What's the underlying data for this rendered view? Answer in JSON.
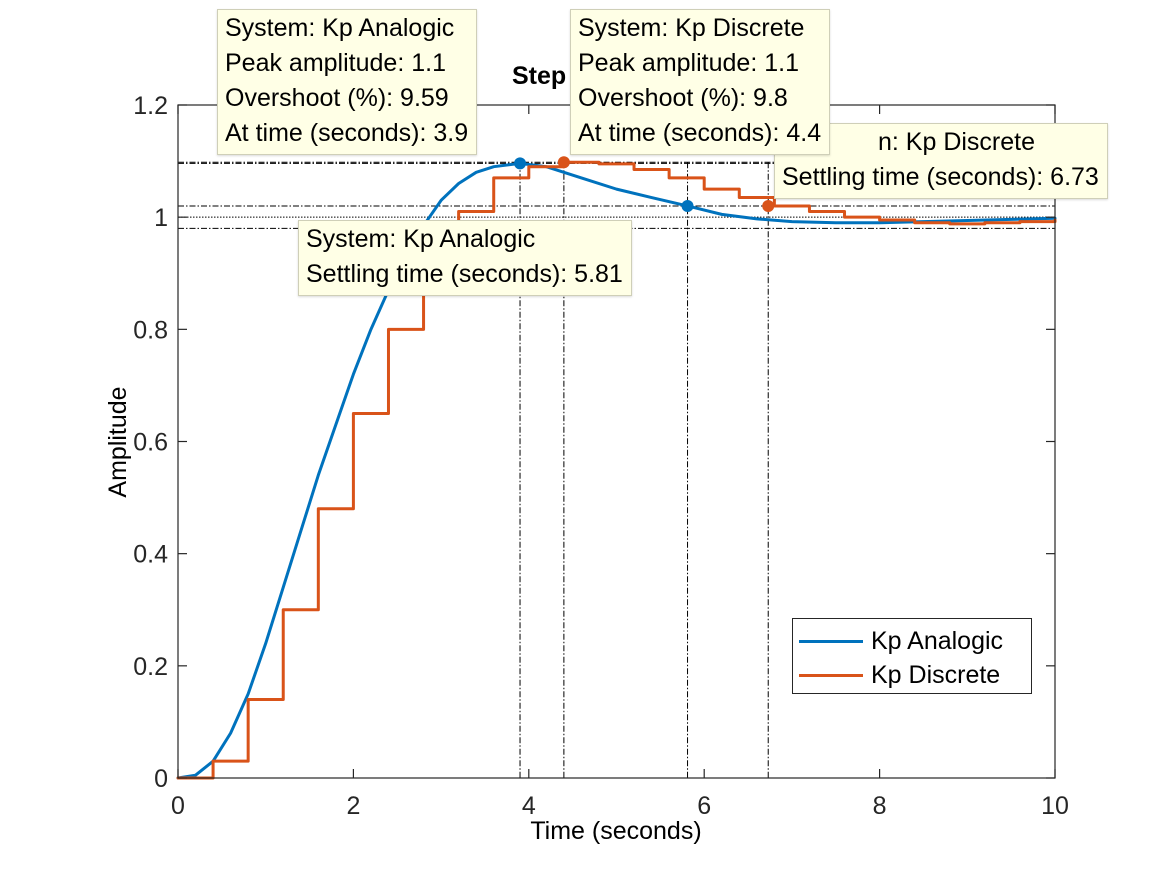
{
  "chart_data": {
    "type": "line",
    "title": "Step",
    "xlabel": "Time (seconds)",
    "ylabel": "Amplitude",
    "xlim": [
      0,
      10
    ],
    "ylim": [
      0,
      1.2
    ],
    "xticks": [
      0,
      2,
      4,
      6,
      8,
      10
    ],
    "xtick_labels": [
      "0",
      "2",
      "4",
      "6",
      "8",
      "10"
    ],
    "yticks": [
      0,
      0.2,
      0.4,
      0.6,
      0.8,
      1,
      1.2
    ],
    "ytick_labels": [
      "0",
      "0.2",
      "0.4",
      "0.6",
      "0.8",
      "1",
      "1.2"
    ],
    "grid": false,
    "legend_position": "bottom-right",
    "series": [
      {
        "name": "Kp Analogic",
        "color": "#0072BD",
        "style": "line",
        "x": [
          0,
          0.2,
          0.4,
          0.6,
          0.8,
          1.0,
          1.2,
          1.4,
          1.6,
          1.8,
          2.0,
          2.2,
          2.4,
          2.6,
          2.8,
          3.0,
          3.2,
          3.4,
          3.6,
          3.9,
          4.2,
          4.6,
          5.0,
          5.4,
          5.81,
          6.2,
          6.6,
          7.0,
          7.5,
          8.0,
          8.5,
          9.0,
          9.5,
          10.0
        ],
        "y": [
          0,
          0.005,
          0.03,
          0.08,
          0.15,
          0.24,
          0.34,
          0.44,
          0.54,
          0.63,
          0.72,
          0.8,
          0.87,
          0.93,
          0.985,
          1.03,
          1.06,
          1.08,
          1.09,
          1.096,
          1.09,
          1.07,
          1.05,
          1.035,
          1.02,
          1.005,
          0.997,
          0.992,
          0.99,
          0.99,
          0.992,
          0.994,
          0.996,
          0.998
        ]
      },
      {
        "name": "Kp Discrete",
        "color": "#D95319",
        "style": "stairs",
        "x": [
          0,
          0.4,
          0.8,
          1.2,
          1.6,
          2.0,
          2.4,
          2.8,
          3.2,
          3.6,
          4.0,
          4.4,
          4.8,
          5.2,
          5.6,
          6.0,
          6.4,
          6.8,
          7.2,
          7.6,
          8.0,
          8.4,
          8.8,
          9.2,
          9.6,
          10.0
        ],
        "y": [
          0,
          0.03,
          0.14,
          0.3,
          0.48,
          0.65,
          0.8,
          0.91,
          1.01,
          1.07,
          1.09,
          1.098,
          1.095,
          1.085,
          1.07,
          1.05,
          1.035,
          1.02,
          1.01,
          1.0,
          0.995,
          0.99,
          0.988,
          0.99,
          0.992,
          0.995
        ]
      }
    ],
    "markers": [
      {
        "series": "Kp Analogic",
        "x": 3.9,
        "y": 1.096
      },
      {
        "series": "Kp Discrete",
        "x": 4.4,
        "y": 1.098
      },
      {
        "series": "Kp Analogic",
        "x": 5.81,
        "y": 1.02
      },
      {
        "series": "Kp Discrete",
        "x": 6.73,
        "y": 1.02
      }
    ],
    "reference_lines": {
      "horizontal": [
        1.098,
        1.096,
        1.02,
        1.0,
        0.98
      ],
      "vertical": [
        3.9,
        4.4,
        5.81,
        6.73
      ]
    }
  },
  "datatips": {
    "analog_peak": {
      "line1": "System: Kp Analogic",
      "line2": "Peak amplitude: 1.1",
      "line3": "Overshoot (%): 9.59",
      "line4": "At time (seconds): 3.9"
    },
    "discrete_peak": {
      "line1": "System: Kp Discrete",
      "line2": "Peak amplitude: 1.1",
      "line3": "Overshoot (%): 9.8",
      "line4": "At time (seconds): 4.4"
    },
    "discrete_settling": {
      "line1": "n: Kp Discrete",
      "line2": "Settling time (seconds): 6.73"
    },
    "analog_settling": {
      "line1": "System: Kp Analogic",
      "line2": "Settling time (seconds): 5.81"
    }
  },
  "legend": {
    "item1": "Kp Analogic",
    "item2": "Kp Discrete"
  }
}
